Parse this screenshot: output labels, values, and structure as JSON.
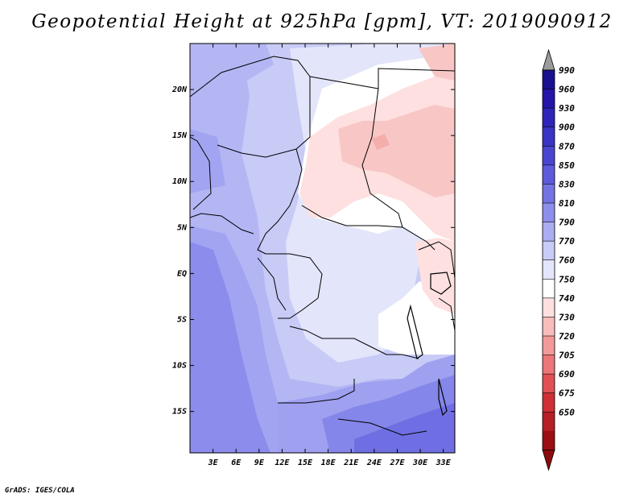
{
  "title": "Geopotential Height at 925hPa [gpm], VT: 2019090912",
  "footer": "GrADS: IGES/COLA",
  "map": {
    "region": "Central Africa",
    "lat_labels": [
      "20N",
      "15N",
      "10N",
      "5N",
      "EQ",
      "5S",
      "10S",
      "15S"
    ],
    "lat_values": [
      20,
      15,
      10,
      5,
      0,
      -5,
      -10,
      -15
    ],
    "lon_labels": [
      "3E",
      "6E",
      "9E",
      "12E",
      "15E",
      "18E",
      "21E",
      "24E",
      "27E",
      "30E",
      "33E"
    ],
    "lon_values": [
      3,
      6,
      9,
      12,
      15,
      18,
      21,
      24,
      27,
      30,
      33
    ],
    "lat_range": [
      -19.5,
      25
    ],
    "lon_range": [
      0,
      34.5
    ]
  },
  "colorbar": {
    "labels": [
      "990",
      "960",
      "930",
      "900",
      "870",
      "850",
      "830",
      "810",
      "790",
      "770",
      "760",
      "750",
      "740",
      "730",
      "720",
      "705",
      "690",
      "675",
      "650"
    ],
    "colors": [
      "#1a0f8f",
      "#2414a8",
      "#2f24b8",
      "#3a33c4",
      "#4a45d0",
      "#5d5bdb",
      "#7473e4",
      "#8e8fec",
      "#abacf2",
      "#c8cbf6",
      "#e3e5fa",
      "#ffffff",
      "#fde0df",
      "#f8bdbb",
      "#f29a99",
      "#ec7678",
      "#e05055",
      "#cf2f35",
      "#b61f25",
      "#9a0f12"
    ],
    "top_arrow_color": "#9b9b9b",
    "bottom_arrow_color": "#8b0c0c"
  }
}
